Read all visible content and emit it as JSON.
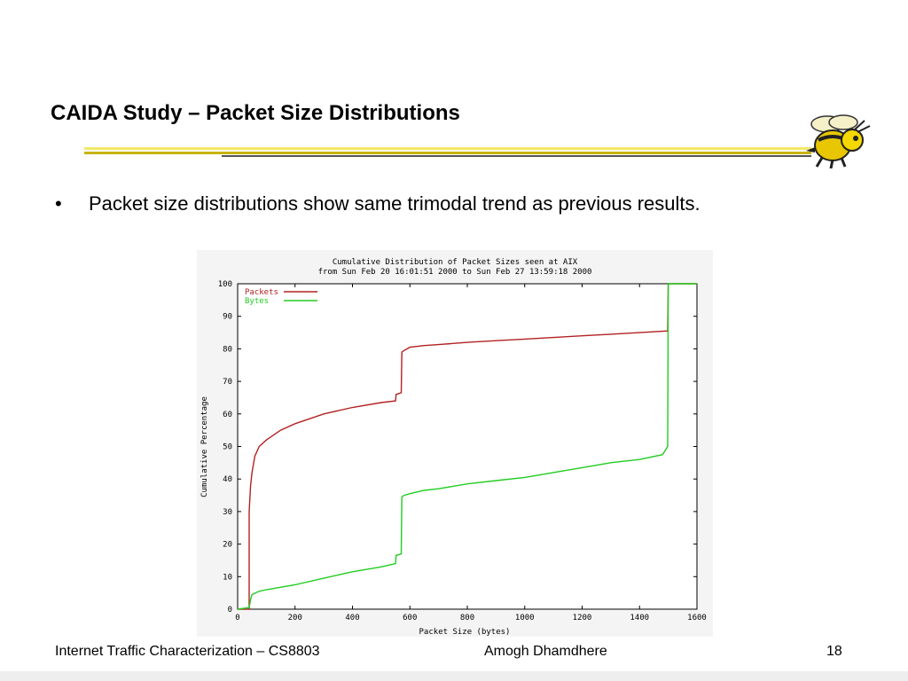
{
  "slide": {
    "title": "CAIDA Study – Packet Size Distributions",
    "bullets": [
      "Packet size distributions show same trimodal trend as previous results."
    ]
  },
  "footer": {
    "left": "Internet Traffic Characterization – CS8803",
    "center": "Amogh Dhamdhere",
    "page": "18"
  },
  "colors": {
    "packets": "#b22222",
    "bytes": "#22cc22",
    "title_rule": "#c8b400"
  },
  "chart_data": {
    "type": "line",
    "title": "Cumulative Distribution of Packet Sizes seen at AIX",
    "subtitle": "from Sun Feb 20 16:01:51 2000 to Sun Feb 27 13:59:18 2000",
    "xlabel": "Packet Size (bytes)",
    "ylabel": "Cumulative Percentage",
    "xlim": [
      0,
      1600
    ],
    "ylim": [
      0,
      100
    ],
    "xticks": [
      0,
      200,
      400,
      600,
      800,
      1000,
      1200,
      1400,
      1600
    ],
    "yticks": [
      0,
      10,
      20,
      30,
      40,
      50,
      60,
      70,
      80,
      90,
      100
    ],
    "legend_position": "top-left",
    "series": [
      {
        "name": "Packets",
        "x": [
          0,
          40,
          40,
          45,
          50,
          60,
          75,
          100,
          150,
          200,
          300,
          400,
          500,
          550,
          552,
          570,
          572,
          580,
          600,
          650,
          700,
          800,
          900,
          1000,
          1100,
          1200,
          1300,
          1400,
          1498,
          1500,
          1600
        ],
        "y": [
          0,
          0,
          30,
          38,
          42,
          47,
          50,
          52,
          55,
          57,
          60,
          62,
          63.5,
          64,
          66,
          66.5,
          79,
          79.5,
          80.5,
          81,
          81.3,
          82,
          82.5,
          83,
          83.5,
          84,
          84.5,
          85,
          85.5,
          100,
          100
        ]
      },
      {
        "name": "Bytes",
        "x": [
          0,
          40,
          45,
          50,
          75,
          100,
          200,
          300,
          400,
          500,
          550,
          552,
          570,
          572,
          580,
          600,
          650,
          700,
          800,
          900,
          1000,
          1100,
          1200,
          1300,
          1400,
          1480,
          1498,
          1500,
          1600
        ],
        "y": [
          0,
          0.5,
          3,
          4.5,
          5.5,
          6,
          7.5,
          9.5,
          11.5,
          13,
          14,
          16.5,
          17,
          34.5,
          35,
          35.5,
          36.5,
          37,
          38.5,
          39.5,
          40.5,
          42,
          43.5,
          45,
          46,
          47.5,
          50,
          100,
          100
        ]
      }
    ]
  }
}
